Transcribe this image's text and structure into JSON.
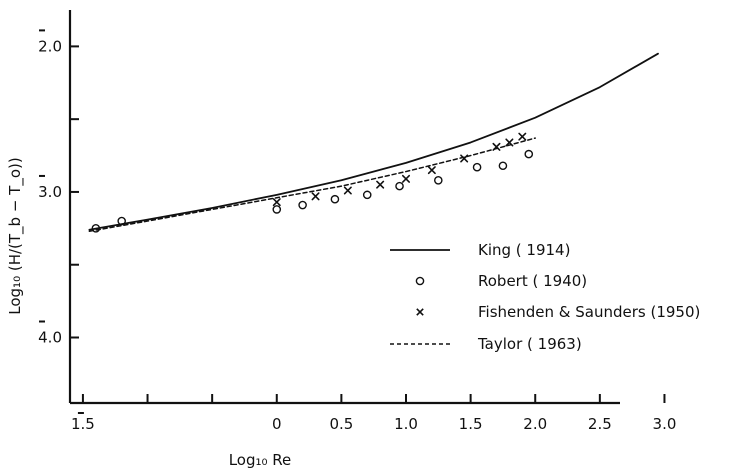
{
  "chart_data": {
    "type": "scatter",
    "xlabel": "Log₁₀ Re",
    "ylabel": "Log₁₀ (H/(T_b − T_o))",
    "xlim": [
      -1.6,
      3.6
    ],
    "ylim": [
      -4.45,
      -1.75
    ],
    "x_ticks": [
      {
        "value": -1.5,
        "label": "1.5",
        "bar": true
      },
      {
        "value": -1.0,
        "label": "",
        "bar": false
      },
      {
        "value": -0.5,
        "label": "",
        "bar": false
      },
      {
        "value": 0.0,
        "label": "0",
        "bar": false
      },
      {
        "value": 0.5,
        "label": "0.5",
        "bar": false
      },
      {
        "value": 1.0,
        "label": "1.0",
        "bar": false
      },
      {
        "value": 1.5,
        "label": "1.5",
        "bar": false
      },
      {
        "value": 2.0,
        "label": "2.0",
        "bar": false
      },
      {
        "value": 2.5,
        "label": "2.5",
        "bar": false
      },
      {
        "value": 3.0,
        "label": "3.0",
        "bar": false
      }
    ],
    "y_ticks": [
      {
        "value": -2.0,
        "label": "2.0",
        "bar_on": "2"
      },
      {
        "value": -2.5,
        "label": "",
        "bar_on": ""
      },
      {
        "value": -3.0,
        "label": "3.0",
        "bar_on": "3"
      },
      {
        "value": -3.5,
        "label": "",
        "bar_on": ""
      },
      {
        "value": -4.0,
        "label": "4.0",
        "bar_on": "4"
      }
    ],
    "grid": false,
    "legend_position": "bottom-right",
    "series": [
      {
        "name": "King ( 1914)",
        "style": "solid",
        "x": [
          -1.45,
          -1.0,
          -0.5,
          0.0,
          0.5,
          1.0,
          1.5,
          2.0,
          2.5,
          2.95
        ],
        "y": [
          -3.26,
          -3.19,
          -3.11,
          -3.02,
          -2.92,
          -2.8,
          -2.66,
          -2.49,
          -2.28,
          -2.05
        ]
      },
      {
        "name": "Robert ( 1940)",
        "style": "circle",
        "x": [
          -1.4,
          -1.2,
          0.0,
          0.2,
          0.45,
          0.7,
          0.95,
          1.25,
          1.55,
          1.75,
          1.95
        ],
        "y": [
          -3.25,
          -3.2,
          -3.12,
          -3.09,
          -3.05,
          -3.02,
          -2.96,
          -2.92,
          -2.83,
          -2.82,
          -2.74
        ]
      },
      {
        "name": "Fishenden & Saunders (1950)",
        "style": "cross",
        "x": [
          0.0,
          0.3,
          0.55,
          0.8,
          1.0,
          1.2,
          1.45,
          1.7,
          1.8,
          1.9
        ],
        "y": [
          -3.07,
          -3.03,
          -2.99,
          -2.95,
          -2.91,
          -2.85,
          -2.77,
          -2.69,
          -2.66,
          -2.62
        ]
      },
      {
        "name": "Taylor ( 1963)",
        "style": "dashed",
        "x": [
          -1.45,
          -1.0,
          -0.5,
          0.0,
          0.5,
          1.0,
          1.5,
          2.0
        ],
        "y": [
          -3.27,
          -3.2,
          -3.12,
          -3.04,
          -2.96,
          -2.86,
          -2.75,
          -2.63
        ]
      }
    ]
  }
}
